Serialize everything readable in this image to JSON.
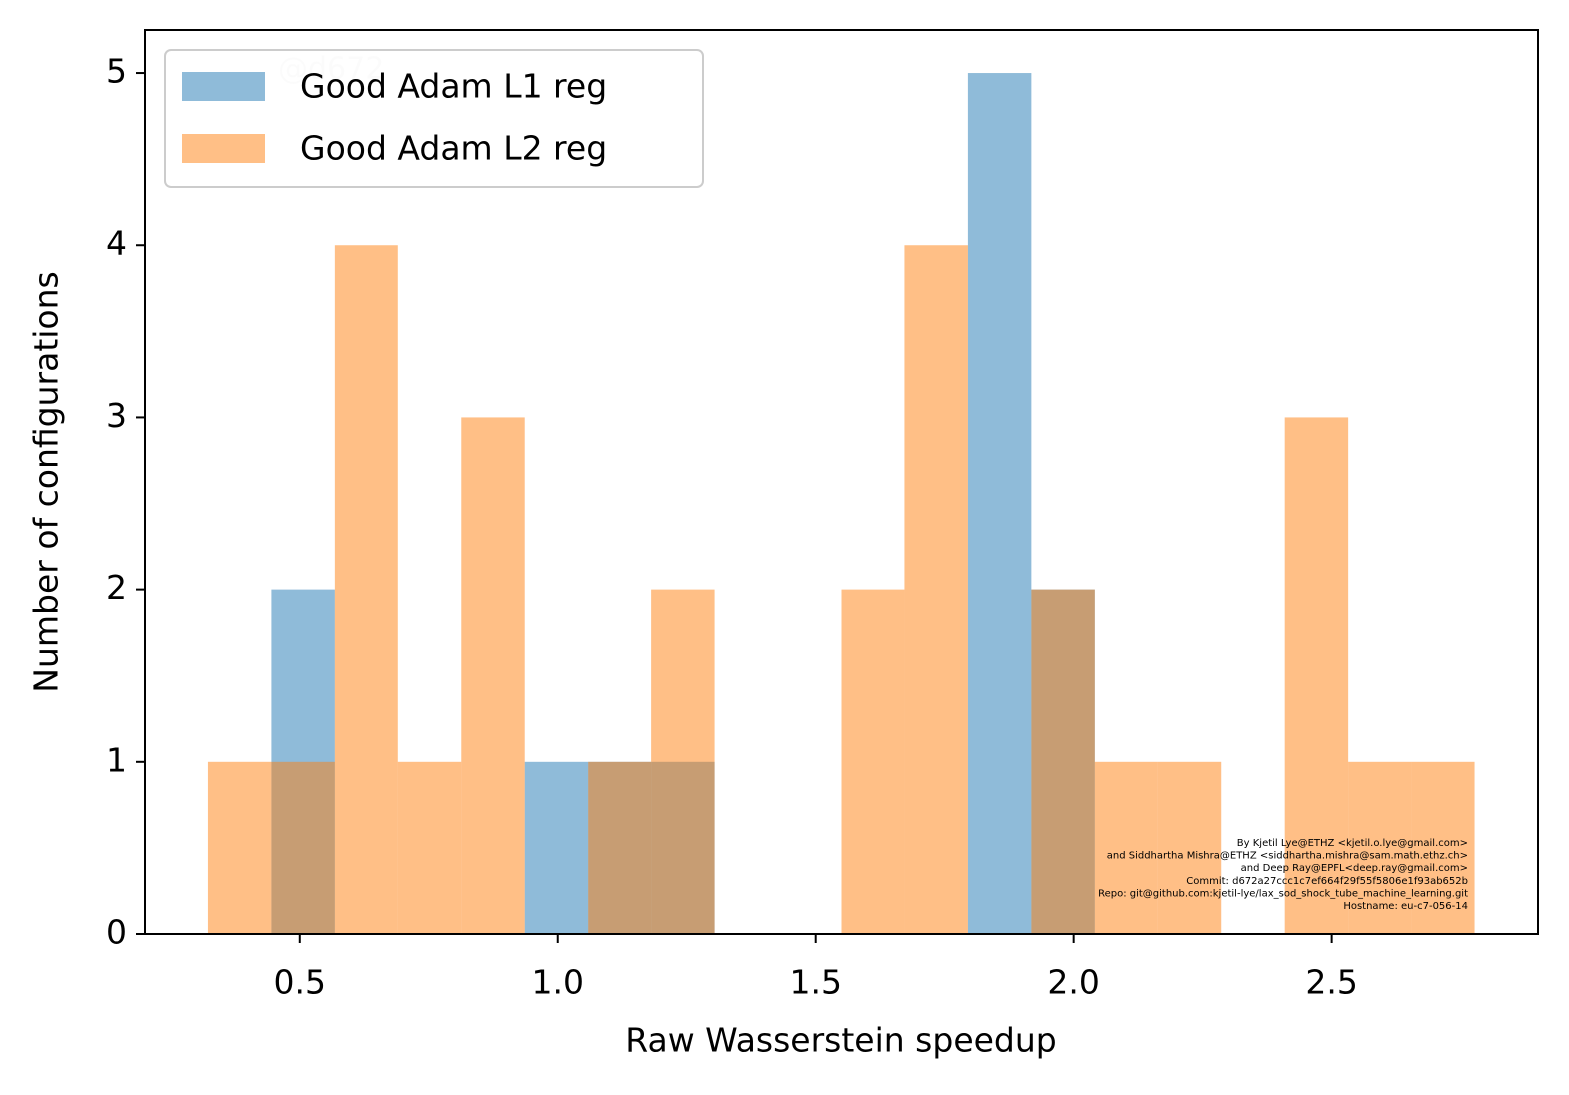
{
  "chart_data": {
    "type": "histogram",
    "xlabel": "Raw Wasserstein speedup",
    "ylabel": "Number of configurations",
    "bins": [
      0.322,
      0.445,
      0.568,
      0.69,
      0.813,
      0.936,
      1.059,
      1.181,
      1.304,
      1.427,
      1.55,
      1.672,
      1.795,
      1.918,
      2.041,
      2.163,
      2.286,
      2.409,
      2.532,
      2.654,
      2.777
    ],
    "series": [
      {
        "name": "Good Adam L1 reg",
        "color": "#1f77b4",
        "values": [
          0,
          2,
          0,
          0,
          0,
          1,
          1,
          1,
          0,
          0,
          0,
          0,
          5,
          2,
          0,
          0,
          0,
          0,
          0,
          0
        ]
      },
      {
        "name": "Good Adam L2 reg",
        "color": "#ff7f0e",
        "values": [
          1,
          1,
          4,
          1,
          3,
          0,
          1,
          2,
          0,
          0,
          2,
          4,
          0,
          2,
          1,
          1,
          0,
          3,
          1,
          1
        ]
      }
    ],
    "opacity": 0.5,
    "xlim": [
      0.2,
      2.9
    ],
    "ylim": [
      0,
      5.25
    ],
    "xticks": [
      0.5,
      {
        "value": 1,
        "label": "1.0"
      },
      1.5,
      {
        "value": 2,
        "label": "2.0"
      },
      2.5
    ],
    "yticks": [
      0,
      1,
      2,
      3,
      4,
      5
    ],
    "legend": "upper-left",
    "watermark": "@d672",
    "annotations": [
      "By Kjetil Lye@ETHZ <kjetil.o.lye@gmail.com>",
      "and Siddhartha Mishra@ETHZ <siddhartha.mishra@sam.math.ethz.ch>",
      "and Deep Ray@EPFL<deep.ray@gmail.com>",
      "Commit: d672a27ccc1c7ef664f29f55f5806e1f93ab652b",
      "Repo: git@github.com:kjetil-lye/lax_sod_shock_tube_machine_learning.git",
      "Hostname: eu-c7-056-14"
    ]
  }
}
